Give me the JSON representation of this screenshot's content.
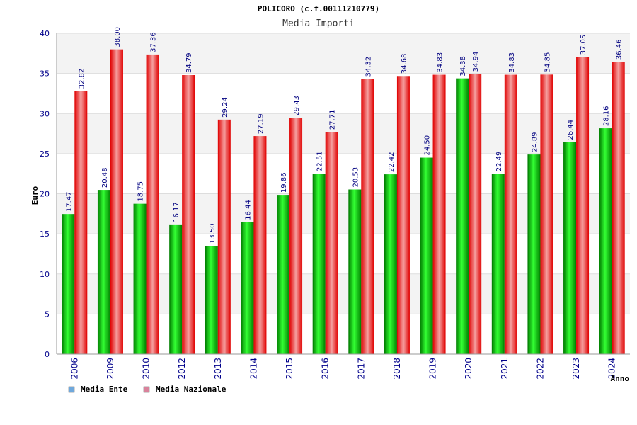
{
  "chart_data": {
    "type": "bar",
    "title": "POLICORO (c.f.00111210779)",
    "subtitle": "Media Importi",
    "ylabel": "Euro",
    "xlabel": "Anno",
    "ylim": [
      0,
      40
    ],
    "yticks": [
      "0",
      "5",
      "10",
      "15",
      "20",
      "25",
      "30",
      "35",
      "40"
    ],
    "categories": [
      "2006",
      "2009",
      "2010",
      "2012",
      "2013",
      "2014",
      "2015",
      "2016",
      "2017",
      "2018",
      "2019",
      "2020",
      "2021",
      "2022",
      "2023",
      "2024"
    ],
    "series": [
      {
        "name": "Media Ente",
        "color": "#00c000",
        "legend_color": "#6fa8dc",
        "values": [
          17.47,
          20.48,
          18.75,
          16.17,
          13.5,
          16.44,
          19.86,
          22.51,
          20.53,
          22.42,
          24.5,
          34.38,
          22.49,
          24.89,
          26.44,
          28.16
        ],
        "labels": [
          "17.47",
          "20.48",
          "18.75",
          "16.17",
          "13.50",
          "16.44",
          "19.86",
          "22.51",
          "20.53",
          "22.42",
          "24.50",
          "34.38",
          "22.49",
          "24.89",
          "26.44",
          "28.16"
        ]
      },
      {
        "name": "Media Nazionale",
        "color": "#e00000",
        "legend_color": "#d9829b",
        "values": [
          32.82,
          38.0,
          37.36,
          34.79,
          29.24,
          27.19,
          29.43,
          27.71,
          34.32,
          34.68,
          34.83,
          34.94,
          34.83,
          34.85,
          37.05,
          36.46
        ],
        "labels": [
          "32.82",
          "38.00",
          "37.36",
          "34.79",
          "29.24",
          "27.19",
          "29.43",
          "27.71",
          "34.32",
          "34.68",
          "34.83",
          "34.94",
          "34.83",
          "34.85",
          "37.05",
          "36.46"
        ]
      }
    ],
    "grid": true,
    "legend": "bottom-left"
  }
}
